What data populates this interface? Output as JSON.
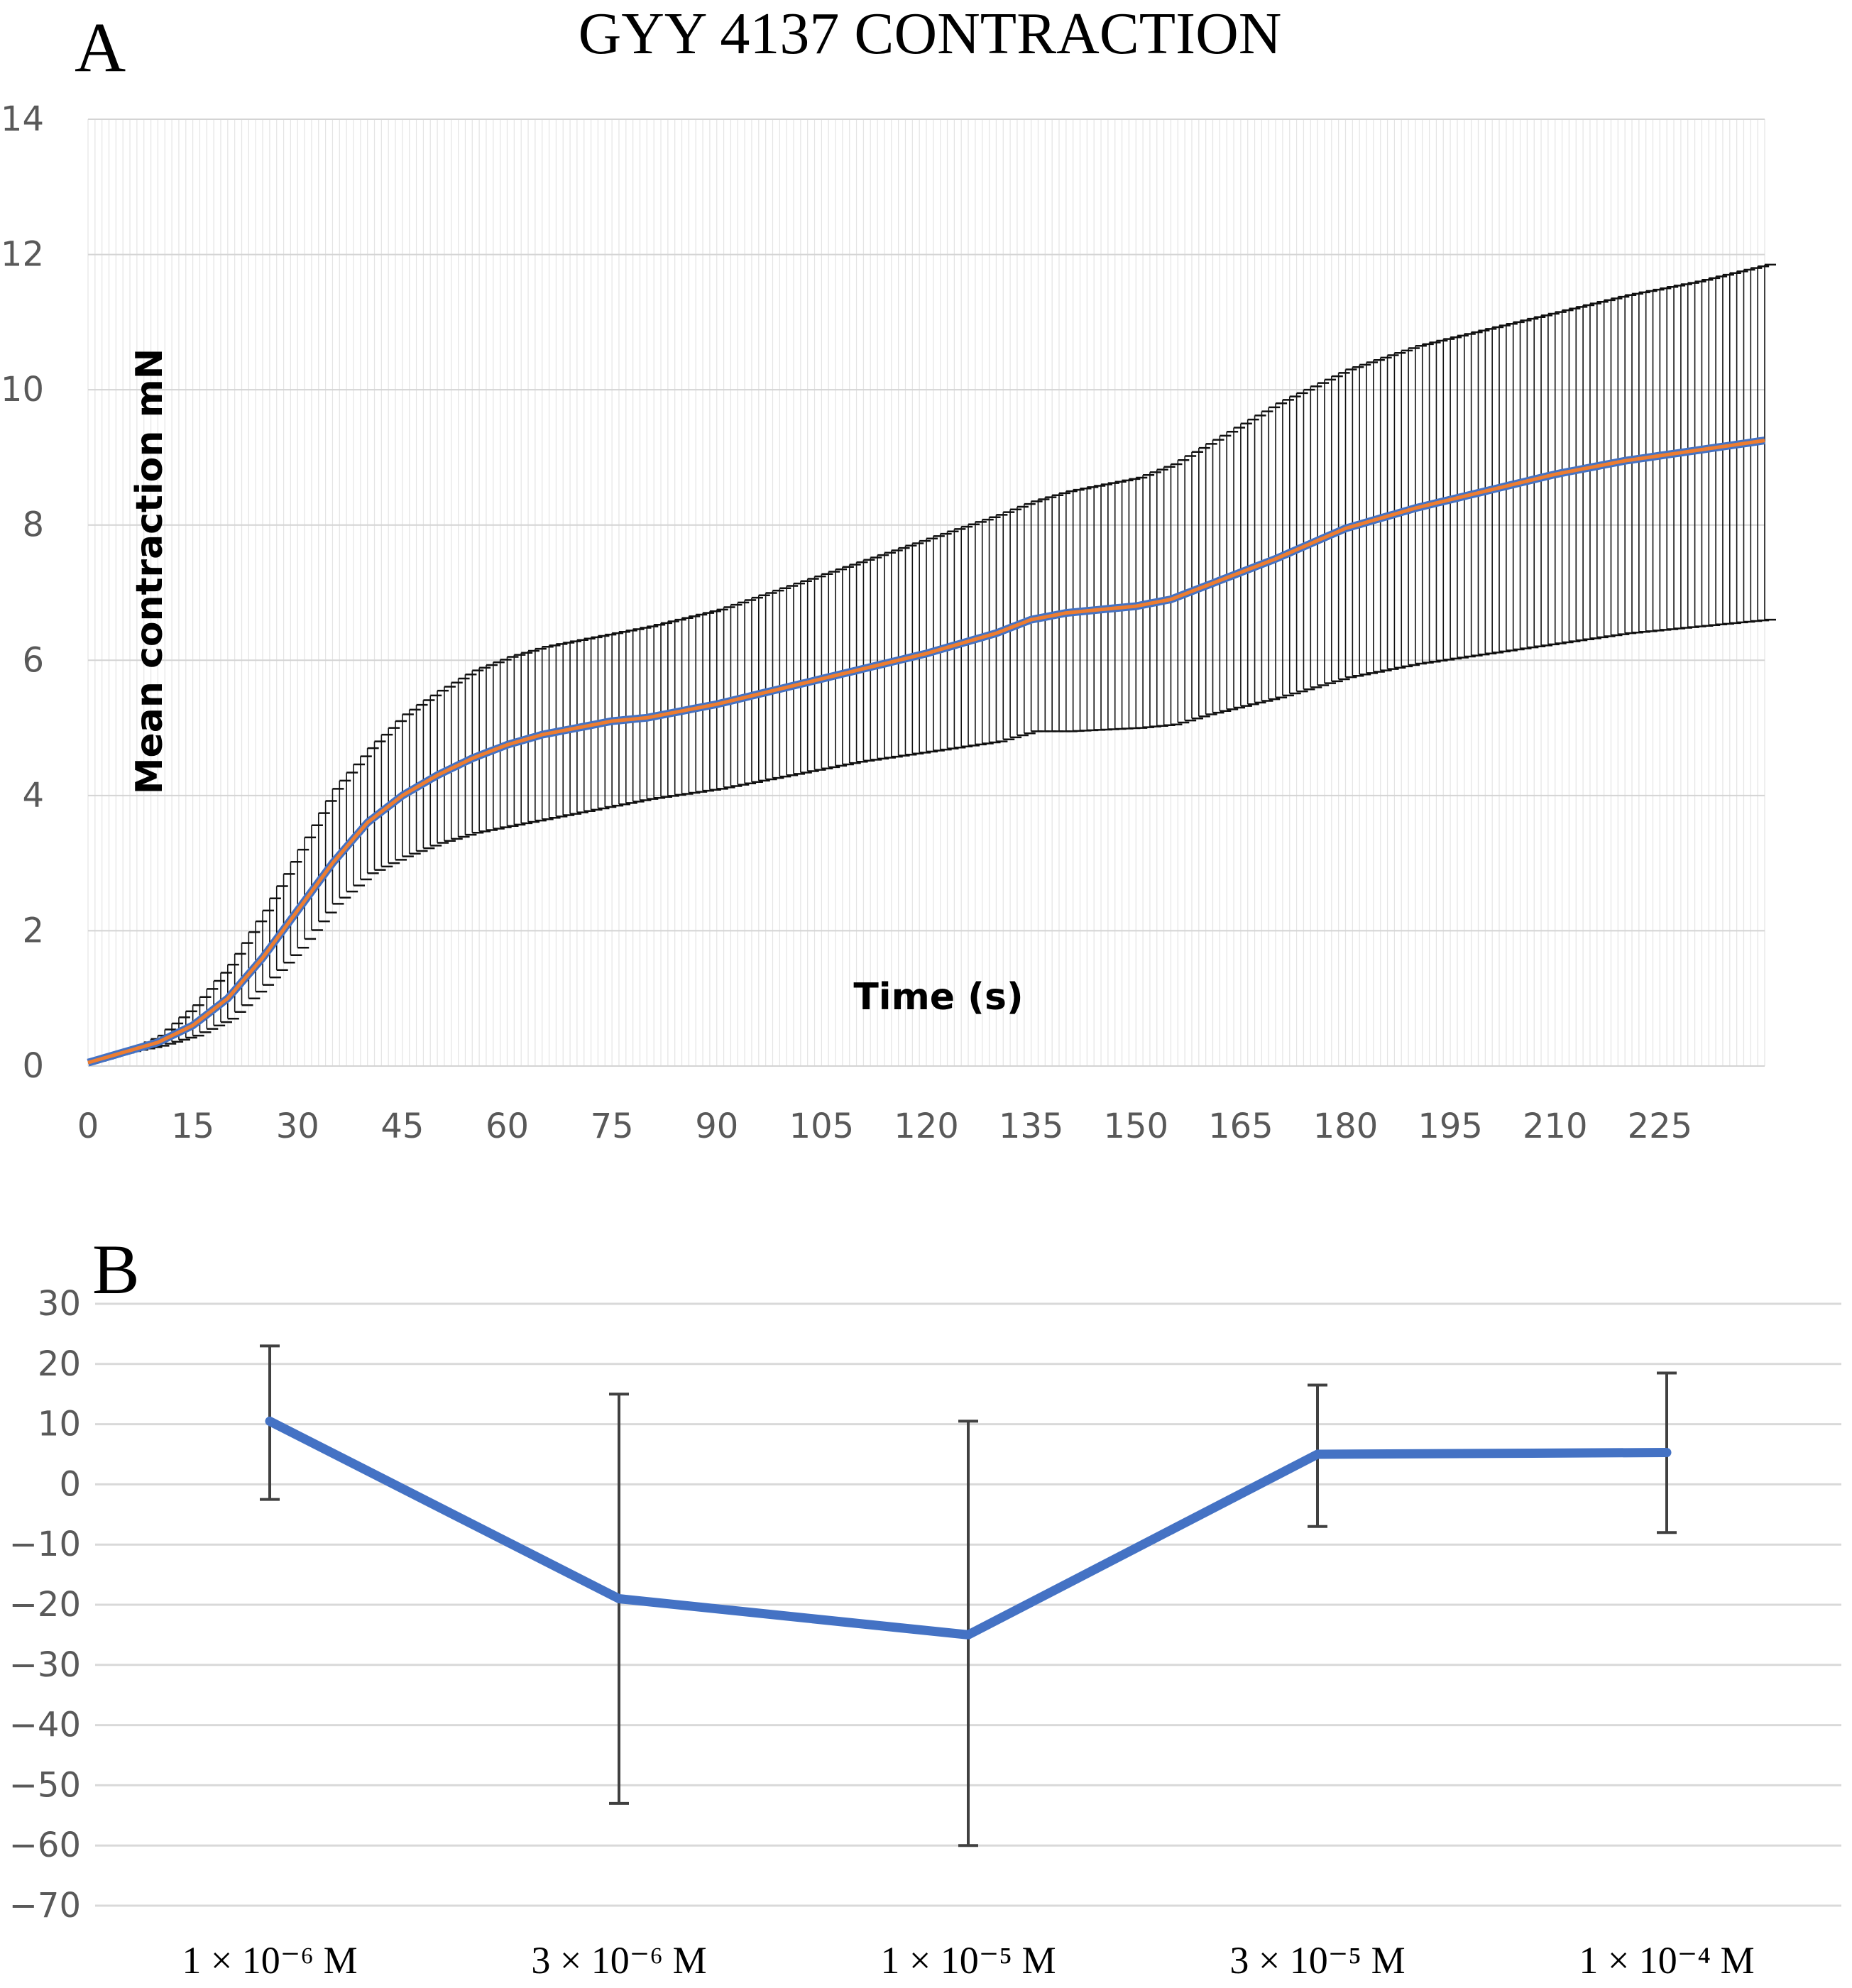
{
  "figure_title": "GYY 4137 CONTRACTION",
  "chart_data": [
    {
      "panel": "A",
      "type": "line",
      "title": "GYY 4137 CONTRACTION",
      "xlabel": "Time (s)",
      "ylabel": "Mean contraction mN",
      "xlim": [
        0,
        240
      ],
      "ylim": [
        0,
        14
      ],
      "xticks": [
        0,
        15,
        30,
        45,
        60,
        75,
        90,
        105,
        120,
        135,
        150,
        165,
        180,
        195,
        210,
        225
      ],
      "yticks": [
        0,
        2,
        4,
        6,
        8,
        10,
        12,
        14
      ],
      "grid": true,
      "error_bars": "one-sided (upper and lower whiskers, every second)",
      "series": [
        {
          "name": "Mean contraction",
          "color": "#ED7D31",
          "x": [
            0,
            5,
            10,
            15,
            20,
            25,
            30,
            35,
            40,
            45,
            50,
            55,
            60,
            65,
            70,
            75,
            80,
            90,
            100,
            110,
            120,
            130,
            135,
            140,
            150,
            155,
            160,
            170,
            180,
            190,
            200,
            210,
            220,
            230,
            240
          ],
          "y": [
            0.05,
            0.2,
            0.35,
            0.6,
            1.0,
            1.6,
            2.3,
            3.0,
            3.6,
            4.0,
            4.3,
            4.55,
            4.75,
            4.9,
            5.0,
            5.1,
            5.15,
            5.35,
            5.6,
            5.85,
            6.1,
            6.4,
            6.6,
            6.7,
            6.8,
            6.9,
            7.1,
            7.5,
            7.95,
            8.25,
            8.5,
            8.75,
            8.95,
            9.1,
            9.25
          ],
          "upper": [
            0.05,
            0.2,
            0.45,
            0.9,
            1.5,
            2.3,
            3.2,
            4.1,
            4.7,
            5.2,
            5.55,
            5.85,
            6.05,
            6.2,
            6.3,
            6.4,
            6.5,
            6.75,
            7.1,
            7.45,
            7.8,
            8.15,
            8.35,
            8.5,
            8.7,
            8.9,
            9.2,
            9.8,
            10.3,
            10.65,
            10.9,
            11.15,
            11.4,
            11.6,
            11.85
          ],
          "lower": [
            0.05,
            0.2,
            0.3,
            0.45,
            0.7,
            1.2,
            1.75,
            2.4,
            2.85,
            3.1,
            3.3,
            3.45,
            3.55,
            3.65,
            3.75,
            3.85,
            3.95,
            4.1,
            4.3,
            4.5,
            4.65,
            4.8,
            4.95,
            4.95,
            5.0,
            5.05,
            5.2,
            5.45,
            5.75,
            5.95,
            6.1,
            6.25,
            6.4,
            6.5,
            6.6
          ]
        }
      ]
    },
    {
      "panel": "B",
      "type": "line",
      "title": "",
      "xlabel": "",
      "ylabel": "",
      "ylim": [
        -70,
        30
      ],
      "yticks": [
        30,
        20,
        10,
        0,
        -10,
        -20,
        -30,
        -40,
        -50,
        -60,
        -70
      ],
      "ytick_labels": [
        "30",
        "20",
        "10",
        "0",
        "−10",
        "−20",
        "−30",
        "−40",
        "−50",
        "−60",
        "−70"
      ],
      "grid": true,
      "categories": [
        "1 × 10⁻⁶ M",
        "3 × 10⁻⁶ M",
        "1 × 10⁻⁵ M",
        "3 × 10⁻⁵ M",
        "1 × 10⁻⁴ M"
      ],
      "series": [
        {
          "name": "GYY 4137",
          "color": "#4472C4",
          "values": [
            10.5,
            -19,
            -25,
            5,
            5.3
          ],
          "upper": [
            23,
            15,
            10.5,
            16.5,
            18.5
          ],
          "lower": [
            -2.5,
            -53,
            -60,
            -7,
            -8
          ]
        }
      ]
    }
  ]
}
